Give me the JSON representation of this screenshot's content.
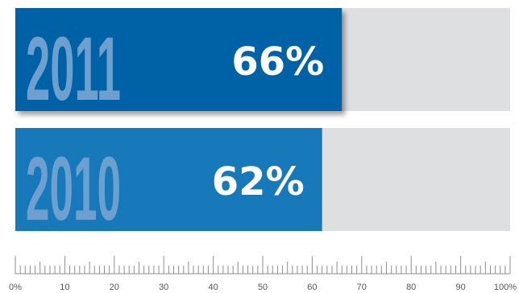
{
  "chart_data": {
    "type": "bar",
    "orientation": "horizontal",
    "categories": [
      "2011",
      "2010"
    ],
    "values": [
      66,
      62
    ],
    "value_labels": [
      "66%",
      "62%"
    ],
    "xlim": [
      0,
      100
    ],
    "ticks": [
      "0%",
      "10",
      "20",
      "30",
      "40",
      "50",
      "60",
      "70",
      "80",
      "90",
      "100%"
    ],
    "bar_colors": [
      "#0062a6",
      "#1779b9"
    ],
    "track_color": "#dedfe1",
    "year_label_color": "#6ea0cf",
    "value_label_color": "#ffffff",
    "axis_color": "#8c8e90",
    "tick_label_color": "#555555",
    "grid": false,
    "legend": "none"
  }
}
